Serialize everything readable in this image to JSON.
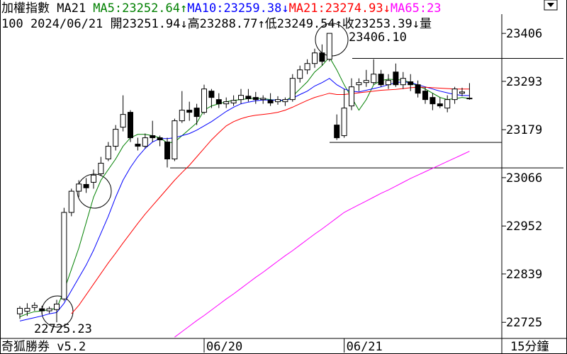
{
  "header": {
    "name": "加權指數 MA21",
    "ma_items": [
      {
        "label": "MA5:23252.64",
        "arrow": "↑",
        "color": "#008000"
      },
      {
        "label": "MA10:23259.38",
        "arrow": "↓",
        "color": "#0000ff"
      },
      {
        "label": "MA21:23274.93",
        "arrow": "↓",
        "color": "#ff0000"
      },
      {
        "label": "MA65:23",
        "color": "#ff00ff"
      }
    ],
    "info": "100 2024/06/21 開23251.94↓高23288.77↑低23249.54↑收23253.39↓量"
  },
  "chart_data": {
    "type": "candlestick",
    "categories": [
      null,
      null,
      null,
      null,
      null,
      null,
      null,
      null,
      null,
      null,
      null,
      null,
      null,
      null,
      null,
      null,
      null,
      null,
      null,
      null,
      null,
      null,
      null,
      null,
      null,
      "06/20",
      null,
      null,
      null,
      null,
      null,
      null,
      null,
      null,
      null,
      null,
      null,
      null,
      null,
      null,
      null,
      null,
      null,
      null,
      "06/21",
      null,
      null,
      null,
      null,
      null,
      null,
      null,
      null,
      null,
      null,
      null,
      null,
      null,
      null,
      null,
      null,
      null
    ],
    "ohlc": {
      "open": [
        22745,
        22751,
        22760,
        22757,
        22752,
        22755,
        22780,
        22984,
        23034,
        23050,
        23055,
        23075,
        23110,
        23140,
        23185,
        23220,
        23145,
        23140,
        23165,
        23160,
        23150,
        23110,
        23200,
        23225,
        23230,
        23220,
        23270,
        23250,
        23240,
        23242,
        23250,
        23258,
        23255,
        23250,
        23248,
        23245,
        23245,
        23250,
        23300,
        23320,
        23335,
        23360,
        23345,
        23190,
        23165,
        23235,
        23285,
        23290,
        23290,
        23310,
        23285,
        23315,
        23285,
        23292,
        23285,
        23270,
        23255,
        23240,
        23230,
        23250,
        23265,
        23251.94
      ],
      "high": [
        22763,
        22770,
        22772,
        22764,
        22762,
        22778,
        22995,
        23040,
        23060,
        23065,
        23085,
        23115,
        23150,
        23190,
        23260,
        23225,
        23160,
        23170,
        23200,
        23165,
        23160,
        23205,
        23270,
        23245,
        23240,
        23285,
        23275,
        23265,
        23255,
        23260,
        23275,
        23275,
        23268,
        23260,
        23265,
        23258,
        23255,
        23310,
        23330,
        23345,
        23370,
        23380,
        23406.1,
        23215,
        23275,
        23300,
        23300,
        23320,
        23345,
        23320,
        23310,
        23335,
        23315,
        23310,
        23295,
        23280,
        23265,
        23255,
        23260,
        23280,
        23278,
        23288.77
      ],
      "low": [
        22733,
        22740,
        22752,
        22745,
        22746,
        22725.23,
        22775,
        22975,
        23020,
        23030,
        23040,
        23070,
        23105,
        23130,
        23175,
        23150,
        23130,
        23135,
        23150,
        23140,
        23090,
        23105,
        23195,
        23200,
        23190,
        23215,
        23230,
        23230,
        23230,
        23235,
        23240,
        23245,
        23240,
        23240,
        23235,
        23238,
        23235,
        23245,
        23290,
        23310,
        23325,
        23330,
        23340,
        23155,
        23160,
        23225,
        23270,
        23280,
        23285,
        23280,
        23275,
        23280,
        23275,
        23270,
        23255,
        23240,
        23225,
        23230,
        23220,
        23240,
        23258,
        23249.54
      ],
      "close": [
        22758,
        22758,
        22765,
        22752,
        22757,
        22768,
        22984,
        23034,
        23051,
        23042,
        23072,
        23100,
        23140,
        23180,
        23215,
        23160,
        23140,
        23160,
        23160,
        23155,
        23110,
        23200,
        23225,
        23220,
        23210,
        23275,
        23255,
        23240,
        23245,
        23248,
        23260,
        23252,
        23250,
        23253,
        23242,
        23250,
        23250,
        23300,
        23320,
        23335,
        23360,
        23340,
        23406.1,
        23160,
        23230,
        23280,
        23290,
        23295,
        23310,
        23285,
        23295,
        23285,
        23300,
        23285,
        23265,
        23250,
        23240,
        23235,
        23250,
        23275,
        23268,
        23253.39
      ]
    },
    "series": [
      {
        "name": "MA5",
        "color": "#008000",
        "values": [
          22738,
          22745,
          22750,
          22752,
          22755,
          22758,
          22800,
          22850,
          22900,
          22960,
          23020,
          23060,
          23085,
          23110,
          23140,
          23160,
          23168,
          23168,
          23165,
          23160,
          23148,
          23150,
          23165,
          23180,
          23195,
          23225,
          23235,
          23240,
          23245,
          23248,
          23250,
          23252,
          23253,
          23252,
          23250,
          23248,
          23247,
          23258,
          23275,
          23292,
          23315,
          23330,
          23350,
          23320,
          23285,
          23255,
          23225,
          23250,
          23285,
          23295,
          23298,
          23297,
          23296,
          23290,
          23282,
          23275,
          23265,
          23255,
          23250,
          23252,
          23255,
          23252.64
        ]
      },
      {
        "name": "MA10",
        "color": "#0000ff",
        "values": [
          22728,
          22732,
          22736,
          22740,
          22745,
          22748,
          22770,
          22800,
          22830,
          22860,
          22895,
          22935,
          22975,
          23020,
          23060,
          23090,
          23115,
          23135,
          23150,
          23158,
          23158,
          23160,
          23165,
          23170,
          23178,
          23188,
          23198,
          23210,
          23222,
          23232,
          23240,
          23244,
          23247,
          23249,
          23249,
          23249,
          23248,
          23253,
          23262,
          23270,
          23282,
          23290,
          23300,
          23285,
          23275,
          23270,
          23268,
          23272,
          23276,
          23280,
          23285,
          23290,
          23292,
          23290,
          23285,
          23280,
          23275,
          23270,
          23266,
          23262,
          23260,
          23259.38
        ]
      },
      {
        "name": "MA21",
        "color": "#ff0000",
        "values": [
          null,
          null,
          null,
          null,
          null,
          null,
          null,
          22745,
          22765,
          22790,
          22815,
          22840,
          22865,
          22888,
          22912,
          22935,
          22958,
          22980,
          23000,
          23020,
          23040,
          23060,
          23078,
          23095,
          23115,
          23135,
          23155,
          23172,
          23188,
          23198,
          23205,
          23210,
          23213,
          23215,
          23217,
          23220,
          23225,
          23232,
          23240,
          23248,
          23255,
          23260,
          23265,
          23262,
          23262,
          23264,
          23266,
          23268,
          23270,
          23272,
          23273,
          23274,
          23276,
          23278,
          23279,
          23279,
          23278,
          23277,
          23276,
          23275,
          23275,
          23274.93
        ]
      },
      {
        "name": "MA65",
        "color": "#ff00ff",
        "values": [
          null,
          null,
          null,
          null,
          null,
          null,
          null,
          null,
          null,
          null,
          null,
          null,
          null,
          null,
          null,
          null,
          null,
          null,
          null,
          null,
          null,
          22690,
          22703,
          22716,
          22729,
          22741,
          22754,
          22767,
          22780,
          22792,
          22805,
          22818,
          22831,
          22843,
          22856,
          22869,
          22882,
          22894,
          22907,
          22920,
          22933,
          22945,
          22958,
          22971,
          22984,
          22993,
          23002,
          23011,
          23020,
          23029,
          23037,
          23046,
          23055,
          23064,
          23072,
          23080,
          23088,
          23096,
          23104,
          23112,
          23120,
          23128
        ]
      }
    ],
    "annotations": [
      "23406.10",
      "22725.23"
    ],
    "reference_lines": [
      23347,
      23149,
      23089
    ],
    "ylim": [
      22687,
      23448
    ],
    "yticks": [
      23406,
      23293,
      23179,
      23066,
      22952,
      22839,
      22725
    ],
    "interval": "15分鐘"
  },
  "footer": {
    "brand": "奇狐勝券 v5.2"
  }
}
